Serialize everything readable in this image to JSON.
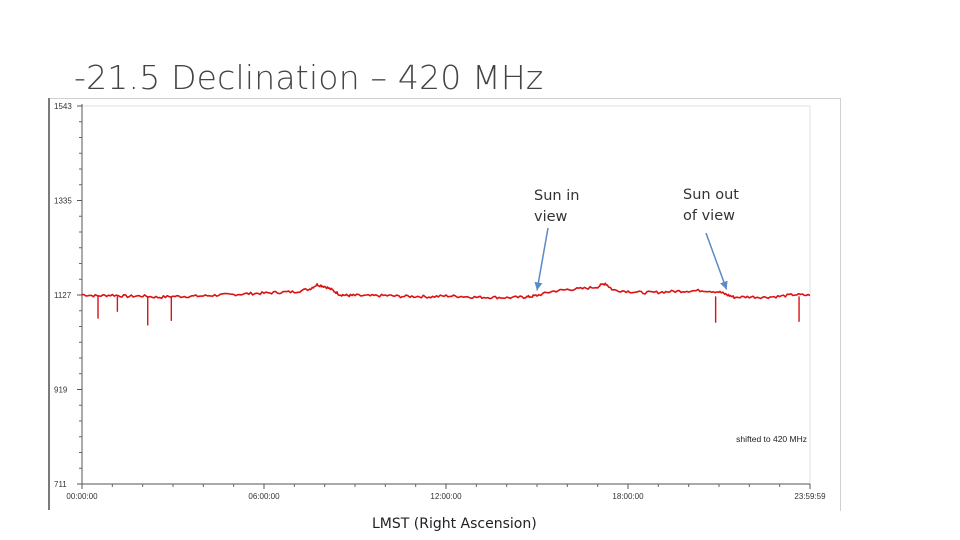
{
  "slide": {
    "title": "-21.5 Declination – 420 MHz"
  },
  "annotations": {
    "sun_in": "Sun in\nview",
    "sun_out": "Sun out\nof view"
  },
  "chart_data": {
    "type": "line",
    "title": "",
    "xlabel": "LMST (Right Ascension)",
    "ylabel": "",
    "ylim": [
      711,
      1543
    ],
    "xlim": [
      0,
      86399
    ],
    "grid": false,
    "y_ticks": [
      {
        "value": 1543,
        "label": "1543"
      },
      {
        "value": 1335,
        "label": "1335"
      },
      {
        "value": 1127,
        "label": "1127"
      },
      {
        "value": 919,
        "label": "919"
      },
      {
        "value": 711,
        "label": "711"
      }
    ],
    "x_ticks": [
      {
        "value": 0,
        "label": "00:00:00"
      },
      {
        "value": 21600,
        "label": "06:00:00"
      },
      {
        "value": 43200,
        "label": "12:00:00"
      },
      {
        "value": 64800,
        "label": "18:00:00"
      },
      {
        "value": 86399,
        "label": "23:59:59"
      }
    ],
    "inner_note": "shifted to 420 MHz",
    "series": [
      {
        "color": "#dd1111",
        "x": [
          0,
          1800,
          3600,
          5400,
          7200,
          9000,
          10800,
          12600,
          14400,
          16200,
          18000,
          19800,
          21600,
          23400,
          25200,
          27000,
          27900,
          28800,
          29700,
          30600,
          31500,
          32400,
          34200,
          36000,
          37800,
          39600,
          41400,
          43200,
          45000,
          46800,
          48600,
          50400,
          52200,
          53100,
          54000,
          55800,
          57600,
          59400,
          61200,
          62100,
          63000,
          64800,
          66600,
          68400,
          70200,
          72000,
          73800,
          75600,
          76500,
          77400,
          79200,
          81000,
          82800,
          84600,
          86399
        ],
        "y": [
          1128,
          1125,
          1127,
          1124,
          1125,
          1122,
          1124,
          1124,
          1125,
          1127,
          1128,
          1130,
          1131,
          1133,
          1134,
          1140,
          1150,
          1146,
          1138,
          1128,
          1126,
          1126,
          1125,
          1126,
          1124,
          1124,
          1123,
          1125,
          1124,
          1122,
          1122,
          1121,
          1122,
          1123,
          1126,
          1135,
          1139,
          1141,
          1145,
          1153,
          1138,
          1135,
          1132,
          1133,
          1135,
          1136,
          1137,
          1134,
          1128,
          1122,
          1123,
          1122,
          1124,
          1128,
          1126
        ]
      }
    ],
    "dips": [
      {
        "x": 1900,
        "y": 1075
      },
      {
        "x": 4200,
        "y": 1090
      },
      {
        "x": 7800,
        "y": 1060
      },
      {
        "x": 10600,
        "y": 1070
      },
      {
        "x": 75200,
        "y": 1066
      },
      {
        "x": 85100,
        "y": 1068
      }
    ],
    "arrows": [
      {
        "label": "sun_in",
        "x": 54000,
        "y": 1126
      },
      {
        "label": "sun_out",
        "x": 76500,
        "y": 1128
      }
    ]
  }
}
